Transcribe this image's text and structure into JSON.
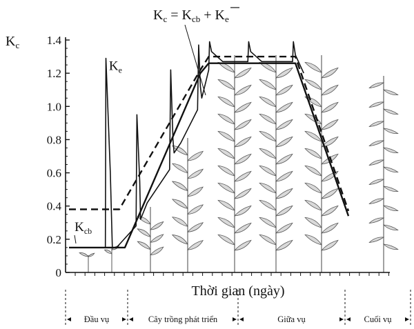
{
  "chart_data": {
    "type": "line",
    "title": "Kc = Kcb + K̄e",
    "title_parts": {
      "lhs_main": "K",
      "lhs_sub": "c",
      "equals": " = ",
      "kcb_main": "K",
      "kcb_sub": "cb",
      "plus": " + ",
      "ke_main": "K",
      "ke_sub": "e"
    },
    "ylabel": {
      "main": "K",
      "sub": "c"
    },
    "xlabel": "Thời gian (ngày)",
    "ylim": [
      0,
      1.4
    ],
    "y_ticks": [
      "0",
      "0.2",
      "0.4",
      "0.6",
      "0.8",
      "1.0",
      "1.2",
      "1.4"
    ],
    "grid": false,
    "stages": [
      {
        "label": "Đầu vụ",
        "start": 0,
        "end": 18
      },
      {
        "label": "Cây trồng phát triển",
        "start": 18,
        "end": 50
      },
      {
        "label": "Giữa vụ",
        "start": 50,
        "end": 81
      },
      {
        "label": "Cuối vụ",
        "start": 81,
        "end": 100
      }
    ],
    "series": [
      {
        "name": "Kc",
        "style": "dashed",
        "x": [
          0,
          18,
          47,
          50,
          81,
          100
        ],
        "y": [
          0.38,
          0.38,
          1.22,
          1.3,
          1.3,
          0.37
        ]
      },
      {
        "name": "Kcb",
        "style": "solid",
        "x": [
          0,
          20,
          47,
          50,
          81,
          100
        ],
        "y": [
          0.15,
          0.15,
          1.2,
          1.26,
          1.26,
          0.34
        ]
      },
      {
        "name": "Ke",
        "style": "solid",
        "x": [
          13,
          13.2,
          14.8,
          15.5,
          17,
          24,
          24.3,
          25.3,
          25.6,
          28,
          36,
          36.4,
          37.2,
          37.6,
          40,
          46,
          46.4,
          47,
          47.5,
          49,
          50,
          50.3,
          51,
          55,
          64,
          64.3,
          65,
          69,
          80,
          80.3,
          81,
          84
        ],
        "y": [
          0.15,
          1.29,
          0.6,
          0.15,
          0.15,
          0.28,
          0.95,
          0.55,
          0.32,
          0.42,
          0.62,
          1.22,
          0.8,
          0.72,
          0.78,
          0.98,
          1.37,
          1.12,
          1.05,
          1.15,
          1.22,
          1.39,
          1.33,
          1.27,
          1.27,
          1.39,
          1.33,
          1.27,
          1.27,
          1.39,
          1.31,
          1.2
        ]
      }
    ],
    "annotations": [
      {
        "text_main": "K",
        "text_sub": "e",
        "x": 14.3,
        "y": 1.22
      },
      {
        "text_main": "K",
        "text_sub": "cb",
        "x": 2.5,
        "y": 0.25
      }
    ]
  }
}
